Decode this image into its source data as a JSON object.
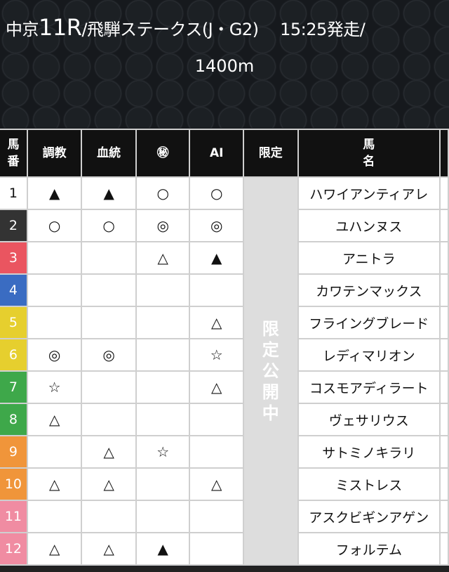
{
  "header": {
    "title_prefix": "中京",
    "title_race": "11R",
    "title_rest": "/飛騨ステークス(J・G2)　 15:25発走/",
    "distance": "1400m"
  },
  "columns": [
    "馬\n番",
    "調教",
    "血統",
    "㊙",
    "AI",
    "限定",
    "馬\n名"
  ],
  "limited_label": "限\n定\n公\n開\n中",
  "frame_colors": {
    "1": "#ffffff",
    "2": "#333333",
    "3": "#ea5560",
    "4": "#3a6cc2",
    "5": "#e6cf2e",
    "6": "#e6cf2e",
    "7": "#3ea84a",
    "8": "#3ea84a",
    "9": "#f0953a",
    "10": "#f0953a",
    "11": "#f08ca2",
    "12": "#f08ca2"
  },
  "rows": [
    {
      "num": "1",
      "training": "▲",
      "pedigree": "▲",
      "secret": "○",
      "ai": "○",
      "name": "ハワイアンティアレ"
    },
    {
      "num": "2",
      "training": "○",
      "pedigree": "○",
      "secret": "◎",
      "ai": "◎",
      "name": "ユハンヌス"
    },
    {
      "num": "3",
      "training": "",
      "pedigree": "",
      "secret": "△",
      "ai": "▲",
      "name": "アニトラ"
    },
    {
      "num": "4",
      "training": "",
      "pedigree": "",
      "secret": "",
      "ai": "",
      "name": "カワテンマックス"
    },
    {
      "num": "5",
      "training": "",
      "pedigree": "",
      "secret": "",
      "ai": "△",
      "name": "フライングブレード"
    },
    {
      "num": "6",
      "training": "◎",
      "pedigree": "◎",
      "secret": "",
      "ai": "☆",
      "name": "レディマリオン"
    },
    {
      "num": "7",
      "training": "☆",
      "pedigree": "",
      "secret": "",
      "ai": "△",
      "name": "コスモアディラート"
    },
    {
      "num": "8",
      "training": "△",
      "pedigree": "",
      "secret": "",
      "ai": "",
      "name": "ヴェサリウス"
    },
    {
      "num": "9",
      "training": "",
      "pedigree": "△",
      "secret": "☆",
      "ai": "",
      "name": "サトミノキラリ"
    },
    {
      "num": "10",
      "training": "△",
      "pedigree": "△",
      "secret": "",
      "ai": "△",
      "name": "ミストレス"
    },
    {
      "num": "11",
      "training": "",
      "pedigree": "",
      "secret": "",
      "ai": "",
      "name": "アスクビギンアゲン"
    },
    {
      "num": "12",
      "training": "△",
      "pedigree": "△",
      "secret": "▲",
      "ai": "",
      "name": "フォルテム"
    }
  ]
}
